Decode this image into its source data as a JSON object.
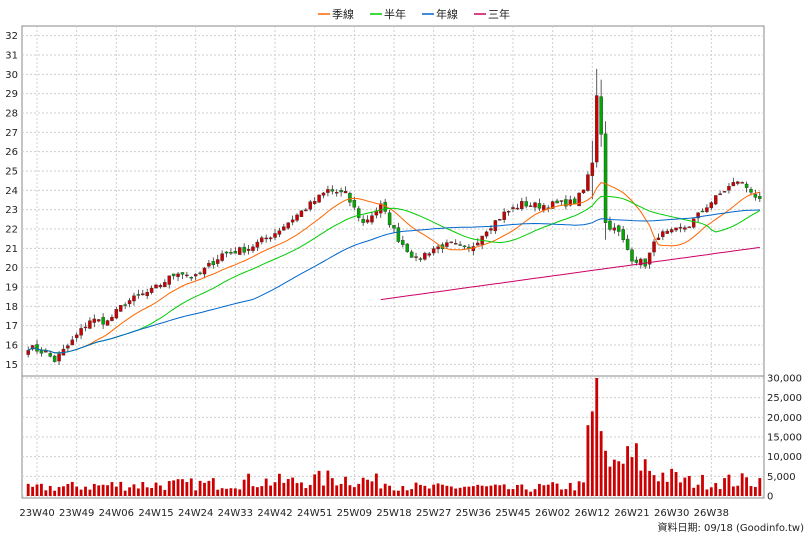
{
  "chart_data": {
    "type": "candlestick",
    "legend": {
      "placement": "top-center",
      "items": [
        {
          "name": "季線",
          "color": "#ff6600"
        },
        {
          "name": "半年",
          "color": "#00cc00"
        },
        {
          "name": "年線",
          "color": "#0066cc"
        },
        {
          "name": "三年",
          "color": "#cc0066"
        }
      ]
    },
    "price_axis": {
      "ylim": [
        14.5,
        32.5
      ],
      "ticks": [
        15,
        16,
        17,
        18,
        19,
        20,
        21,
        22,
        23,
        24,
        25,
        26,
        27,
        28,
        29,
        30,
        31,
        32
      ]
    },
    "volume_axis": {
      "ylim": [
        0,
        30000
      ],
      "ticks": [
        "0",
        "5,000",
        "10,000",
        "15,000",
        "20,000",
        "25,000",
        "30,000"
      ],
      "values": [
        0,
        5000,
        10000,
        15000,
        20000,
        25000,
        30000
      ]
    },
    "x_axis": {
      "labels": [
        "23W40",
        "23W49",
        "24W06",
        "24W15",
        "24W24",
        "24W33",
        "24W42",
        "24W51",
        "25W09",
        "25W18",
        "25W27",
        "25W36",
        "25W45",
        "26W02",
        "26W12",
        "26W21",
        "26W30",
        "26W38"
      ]
    },
    "colors": {
      "up": "#cc0000",
      "down": "#00aa00"
    },
    "grid": true,
    "footer": "資料日期: 09/18 (Goodinfo.tw)",
    "price_anchors": [
      [
        0,
        15.9
      ],
      [
        4,
        15.6
      ],
      [
        6,
        15.2
      ],
      [
        10,
        16.2
      ],
      [
        14,
        17.3
      ],
      [
        18,
        17.2
      ],
      [
        22,
        18.2
      ],
      [
        28,
        18.8
      ],
      [
        34,
        19.8
      ],
      [
        38,
        19.5
      ],
      [
        44,
        20.7
      ],
      [
        50,
        21.0
      ],
      [
        56,
        21.8
      ],
      [
        62,
        22.9
      ],
      [
        68,
        24.0
      ],
      [
        72,
        23.8
      ],
      [
        76,
        22.3
      ],
      [
        80,
        23.2
      ],
      [
        84,
        21.5
      ],
      [
        88,
        20.4
      ],
      [
        92,
        21.0
      ],
      [
        96,
        21.2
      ],
      [
        100,
        20.9
      ],
      [
        104,
        22.0
      ],
      [
        108,
        22.8
      ],
      [
        112,
        23.3
      ],
      [
        116,
        23.2
      ],
      [
        120,
        23.3
      ],
      [
        124,
        23.4
      ],
      [
        126,
        24.0
      ],
      [
        128,
        25.5
      ],
      [
        129,
        29.0
      ],
      [
        130,
        27.0
      ],
      [
        131,
        22.3
      ],
      [
        134,
        21.8
      ],
      [
        137,
        20.5
      ],
      [
        140,
        20.2
      ],
      [
        143,
        21.7
      ],
      [
        146,
        21.8
      ],
      [
        150,
        22.2
      ],
      [
        154,
        23.2
      ],
      [
        158,
        24.0
      ],
      [
        161,
        24.5
      ],
      [
        164,
        24.0
      ],
      [
        166,
        23.4
      ]
    ],
    "volume_anchors": [
      [
        0,
        2000
      ],
      [
        20,
        2800
      ],
      [
        40,
        3000
      ],
      [
        50,
        3800
      ],
      [
        60,
        3600
      ],
      [
        70,
        4600
      ],
      [
        80,
        3600
      ],
      [
        90,
        2000
      ],
      [
        100,
        2400
      ],
      [
        110,
        1800
      ],
      [
        120,
        2400
      ],
      [
        126,
        2600
      ],
      [
        127,
        18000
      ],
      [
        128,
        21500
      ],
      [
        129,
        30000
      ],
      [
        130,
        16500
      ],
      [
        132,
        6500
      ],
      [
        134,
        8500
      ],
      [
        138,
        9500
      ],
      [
        142,
        6000
      ],
      [
        150,
        3600
      ],
      [
        160,
        3800
      ],
      [
        166,
        4000
      ]
    ],
    "ma_periods": {
      "季線": 13,
      "半年": 26,
      "年線": 52
    }
  }
}
